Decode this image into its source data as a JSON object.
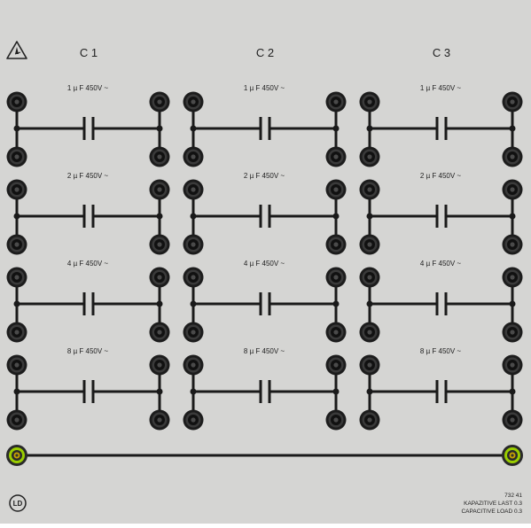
{
  "panel": {
    "warning_icon": "warning-triangle-icon",
    "logo_text": "LD",
    "columns": [
      {
        "label": "C 1"
      },
      {
        "label": "C 2"
      },
      {
        "label": "C 3"
      }
    ],
    "rows": [
      {
        "label": "1 µ F 450V ~"
      },
      {
        "label": "2 µ F 450V ~"
      },
      {
        "label": "4 µ F 450V ~"
      },
      {
        "label": "8 µ F 450V ~"
      }
    ],
    "footer": {
      "part_number": "732 41",
      "name_de": "KAPAZITIVE LAST 0.3",
      "name_en": "CAPACITIVE LOAD 0.3"
    },
    "colors": {
      "panel_bg": "#d5d5d3",
      "wire": "#1a1a1a",
      "socket_ring": "#1c1c1c",
      "ground_socket": "#9acd00",
      "ground_inner": "#c8a200"
    }
  }
}
